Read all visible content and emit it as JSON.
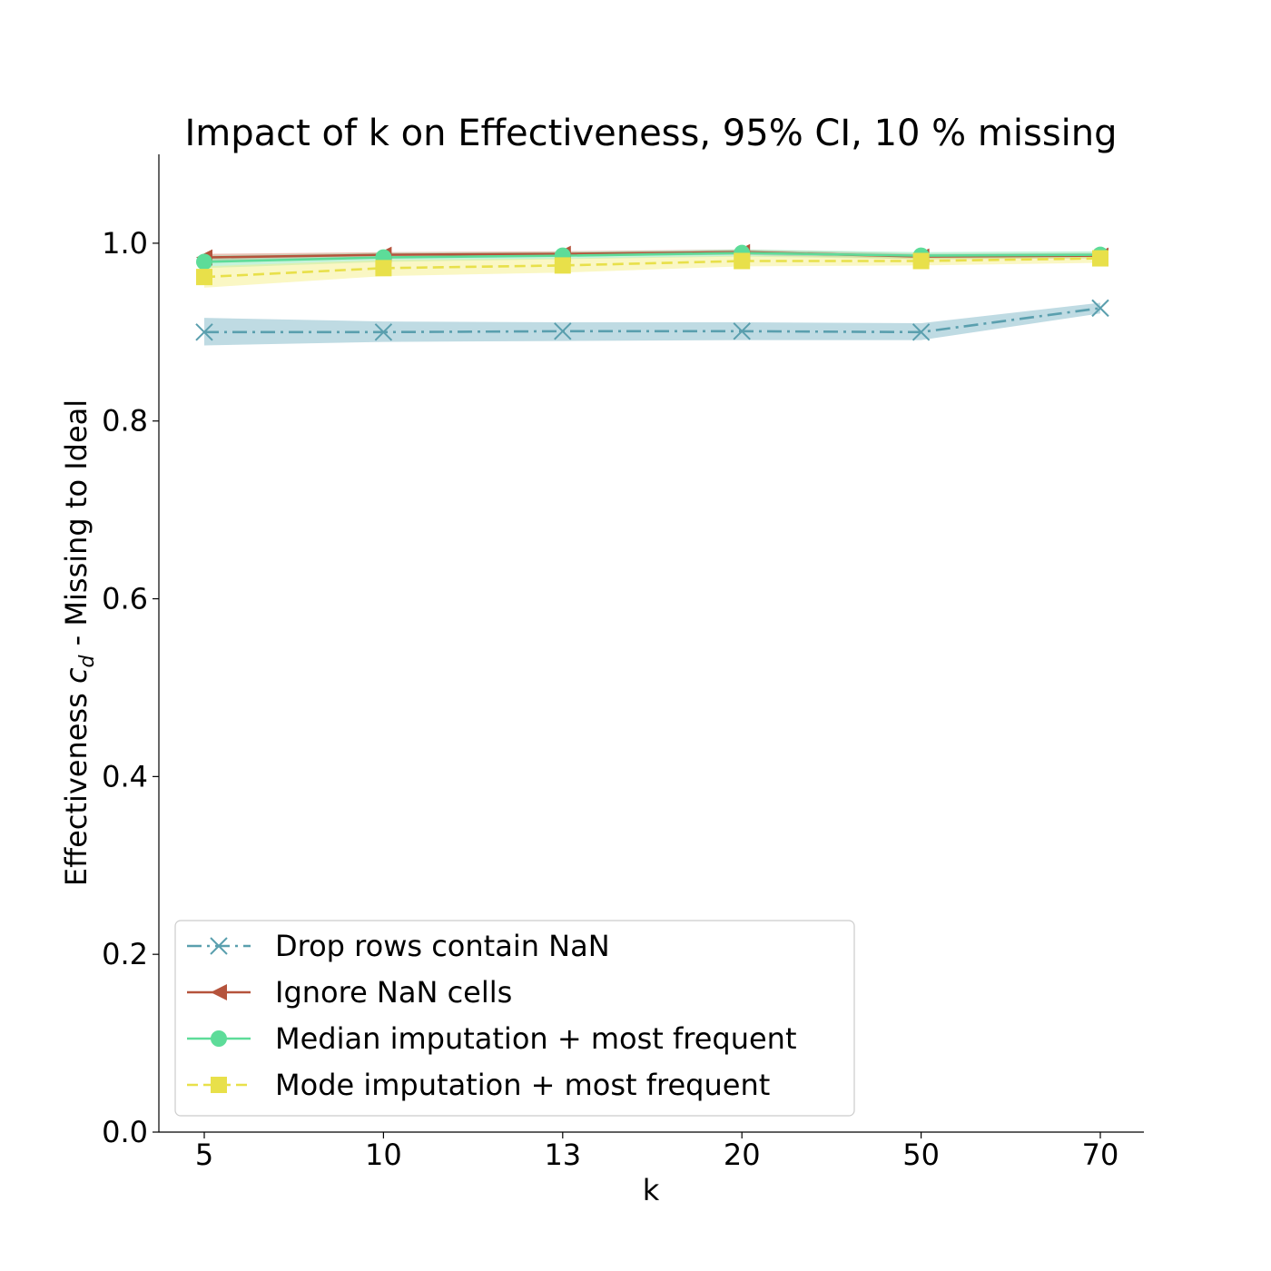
{
  "chart_data": {
    "type": "line",
    "title": "Impact of k on Effectiveness, 95% CI, 10 % missing",
    "xlabel": "k",
    "ylabel_prefix": "Effectiveness ",
    "ylabel_symbol": "c",
    "ylabel_subscript": "d",
    "ylabel_suffix": " - Missing to Ideal",
    "categories": [
      "5",
      "10",
      "13",
      "20",
      "50",
      "70"
    ],
    "ylim": [
      0.0,
      1.1
    ],
    "yticks": [
      "0.0",
      "0.2",
      "0.4",
      "0.6",
      "0.8",
      "1.0"
    ],
    "ytick_values": [
      0.0,
      0.2,
      0.4,
      0.6,
      0.8,
      1.0
    ],
    "grid": false,
    "legend_position": "lower-left",
    "series": [
      {
        "name": "Drop rows contain NaN",
        "color": "#5a9fae",
        "band_color": "#7fb8c8",
        "linestyle": "dashdot",
        "marker": "x",
        "values": [
          0.9,
          0.9,
          0.901,
          0.901,
          0.9,
          0.927
        ],
        "lower": [
          0.885,
          0.889,
          0.89,
          0.891,
          0.891,
          0.921
        ],
        "upper": [
          0.916,
          0.912,
          0.911,
          0.911,
          0.91,
          0.933
        ]
      },
      {
        "name": "Ignore NaN cells",
        "color": "#b5533c",
        "band_color": "#d9876f",
        "linestyle": "solid",
        "marker": "triangle-left",
        "values": [
          0.984,
          0.987,
          0.988,
          0.99,
          0.985,
          0.986
        ],
        "lower": [
          0.98,
          0.984,
          0.985,
          0.987,
          0.982,
          0.983
        ],
        "upper": [
          0.988,
          0.99,
          0.991,
          0.993,
          0.988,
          0.989
        ]
      },
      {
        "name": "Median imputation + most frequent",
        "color": "#5ddc99",
        "band_color": "#8be8b8",
        "linestyle": "solid",
        "marker": "circle",
        "values": [
          0.979,
          0.984,
          0.986,
          0.989,
          0.986,
          0.987
        ],
        "lower": [
          0.972,
          0.979,
          0.982,
          0.985,
          0.982,
          0.983
        ],
        "upper": [
          0.986,
          0.989,
          0.99,
          0.993,
          0.99,
          0.991
        ]
      },
      {
        "name": "Mode imputation + most frequent",
        "color": "#e8e04a",
        "band_color": "#f5f08a",
        "linestyle": "dashed",
        "marker": "square",
        "values": [
          0.962,
          0.972,
          0.975,
          0.98,
          0.98,
          0.983
        ],
        "lower": [
          0.95,
          0.963,
          0.967,
          0.974,
          0.975,
          0.978
        ],
        "upper": [
          0.974,
          0.981,
          0.983,
          0.986,
          0.985,
          0.988
        ]
      }
    ]
  }
}
